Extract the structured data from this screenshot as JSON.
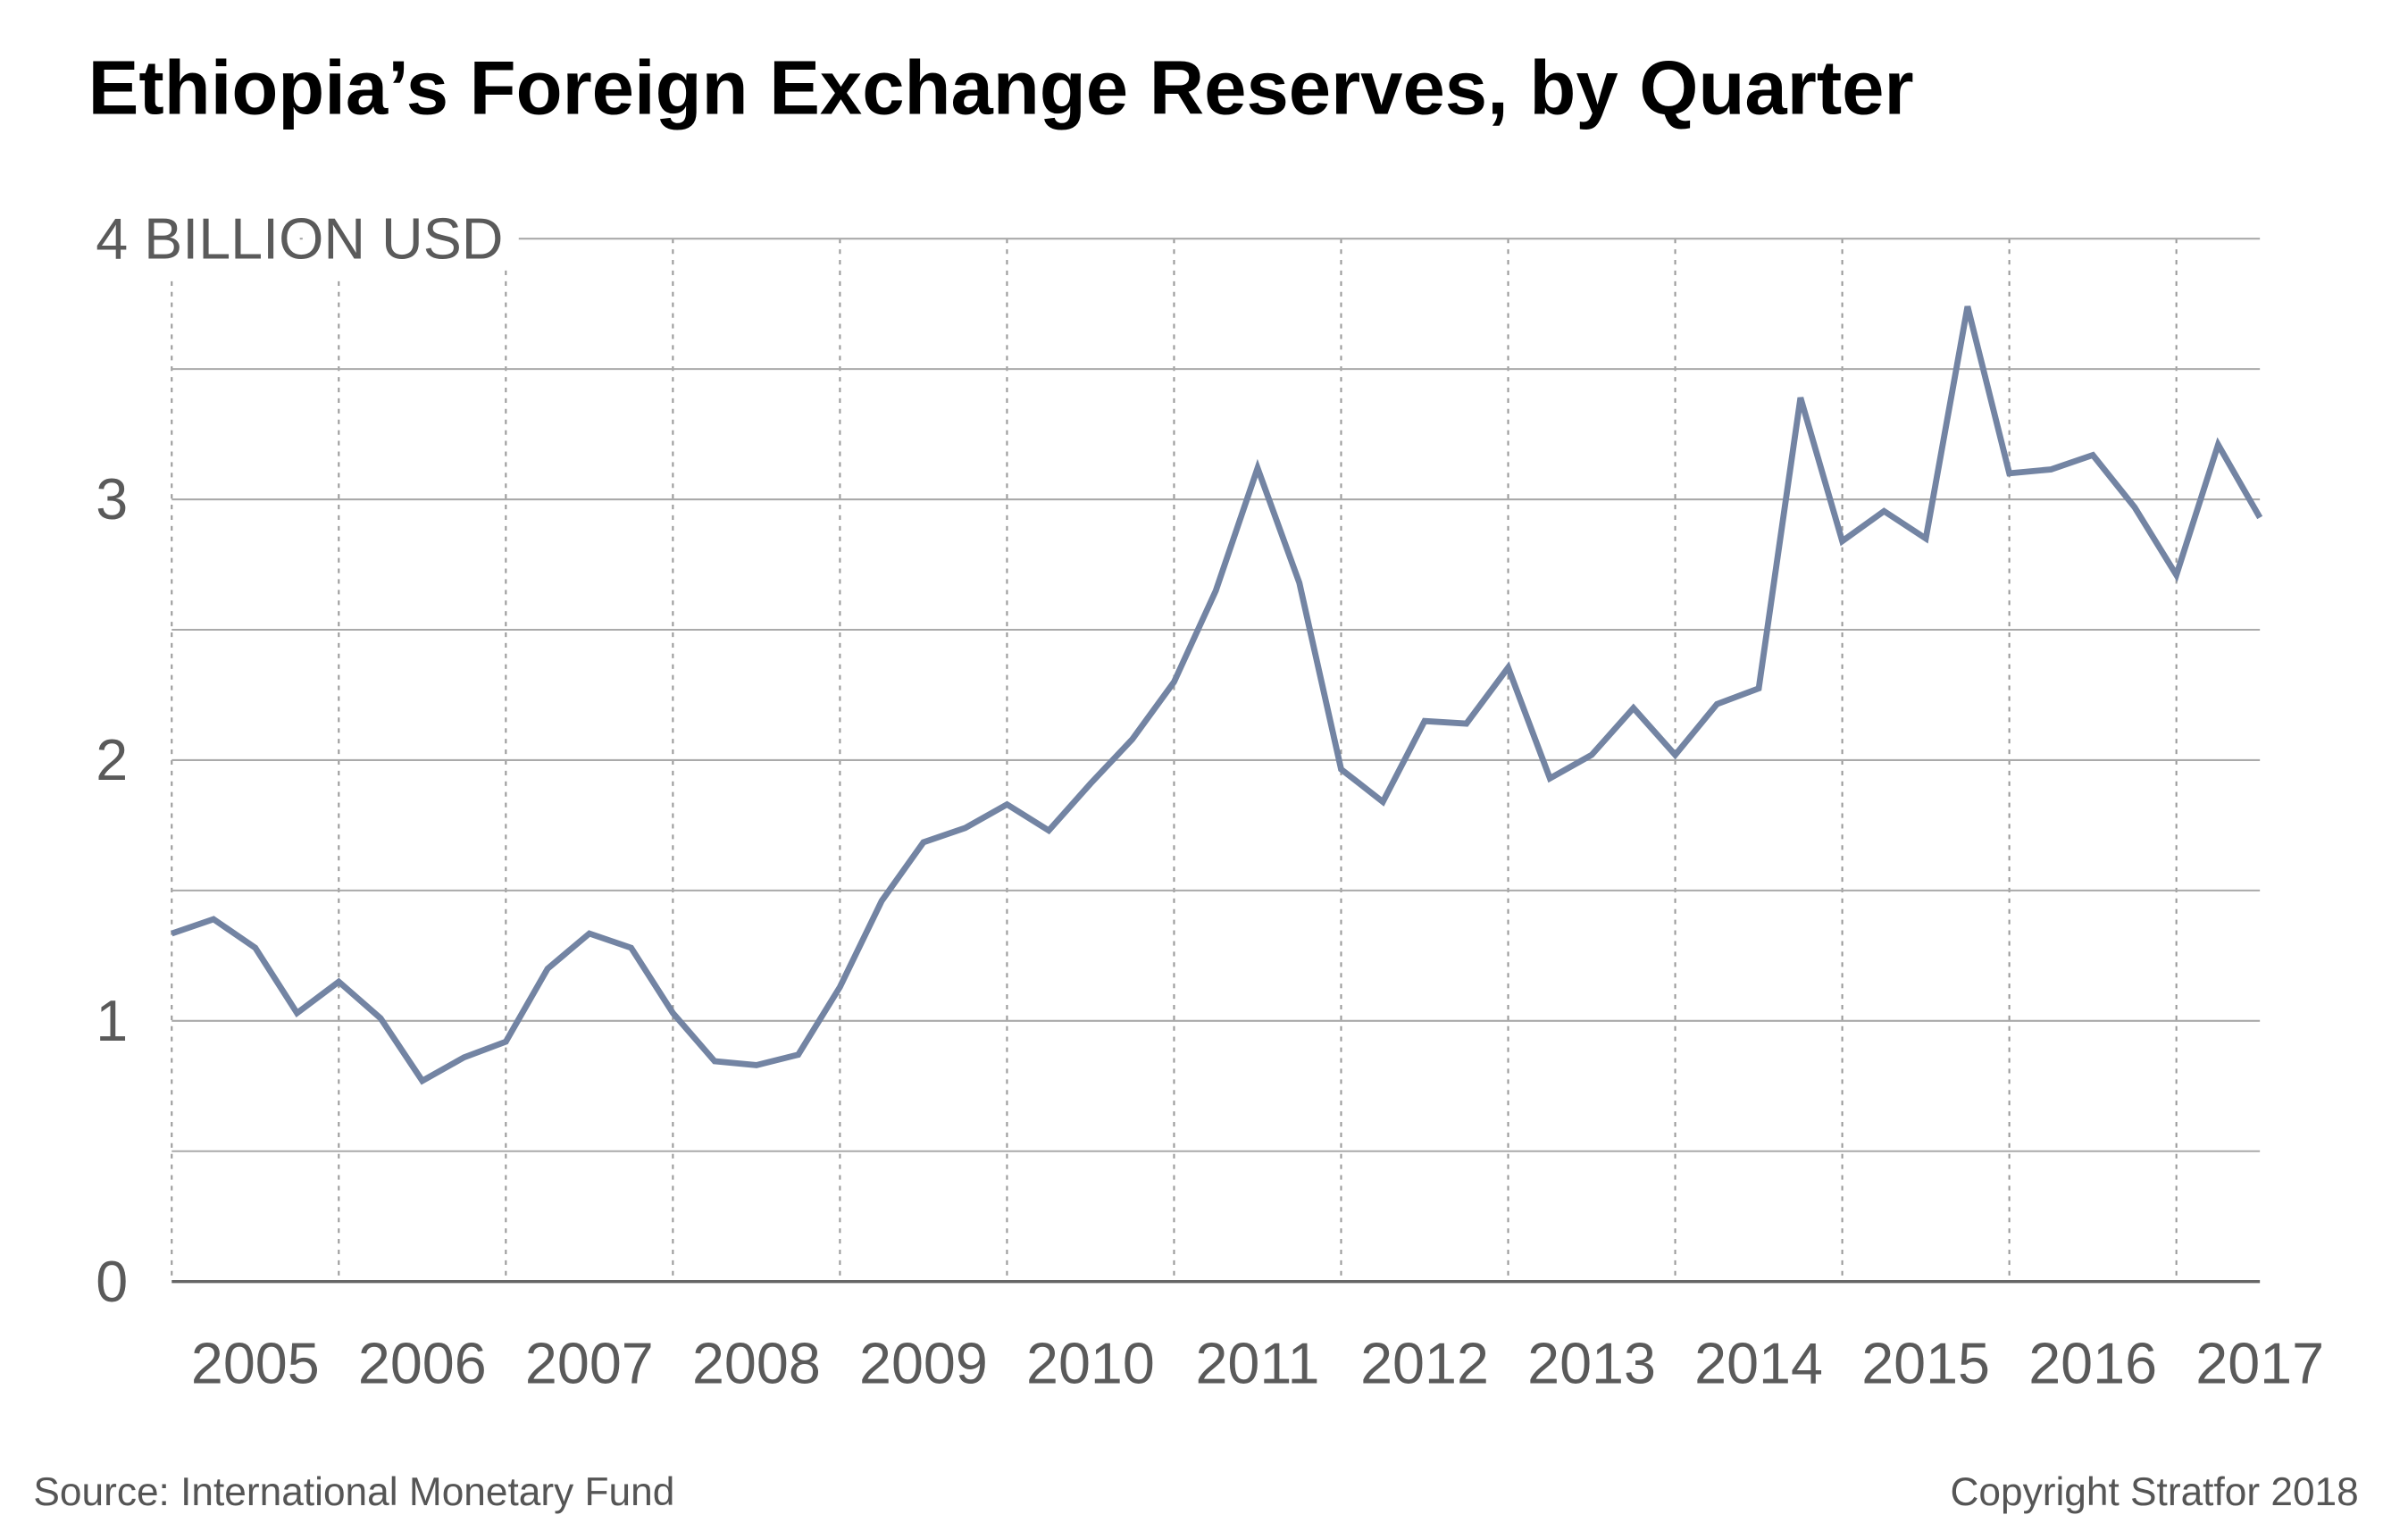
{
  "chart_data": {
    "type": "line",
    "title": "Ethiopia’s Foreign Exchange Reserves, by Quarter",
    "source": "Source: International Monetary Fund",
    "copyright": "Copyright Stratfor 2018",
    "x": [
      2005,
      2005.25,
      2005.5,
      2005.75,
      2006,
      2006.25,
      2006.5,
      2006.75,
      2007,
      2007.25,
      2007.5,
      2007.75,
      2008,
      2008.25,
      2008.5,
      2008.75,
      2009,
      2009.25,
      2009.5,
      2009.75,
      2010,
      2010.25,
      2010.5,
      2010.75,
      2011,
      2011.25,
      2011.5,
      2011.75,
      2012,
      2012.25,
      2012.5,
      2012.75,
      2013,
      2013.25,
      2013.5,
      2013.75,
      2014,
      2014.25,
      2014.5,
      2014.75,
      2015,
      2015.25,
      2015.5,
      2015.75,
      2016,
      2016.25,
      2016.5,
      2016.75,
      2017,
      2017.25,
      2017.5
    ],
    "series": [
      {
        "name": "Foreign exchange reserves",
        "color": "#7384a3",
        "values": [
          1.335,
          1.39,
          1.28,
          1.03,
          1.15,
          1.01,
          0.77,
          0.86,
          0.92,
          1.2,
          1.335,
          1.28,
          1.03,
          0.845,
          0.83,
          0.87,
          1.13,
          1.46,
          1.685,
          1.74,
          1.83,
          1.73,
          1.91,
          2.08,
          2.3,
          2.65,
          3.12,
          2.68,
          1.965,
          1.84,
          2.15,
          2.14,
          2.355,
          1.93,
          2.02,
          2.2,
          2.02,
          2.215,
          2.275,
          3.39,
          2.84,
          2.955,
          2.85,
          3.74,
          3.1,
          3.115,
          3.17,
          2.97,
          2.71,
          3.21,
          2.93
        ]
      }
    ],
    "xlim": [
      2005,
      2017.5
    ],
    "xticks": [
      {
        "value": 2005.5,
        "label": "2005"
      },
      {
        "value": 2006.5,
        "label": "2006"
      },
      {
        "value": 2007.5,
        "label": "2007"
      },
      {
        "value": 2008.5,
        "label": "2008"
      },
      {
        "value": 2009.5,
        "label": "2009"
      },
      {
        "value": 2010.5,
        "label": "2010"
      },
      {
        "value": 2011.5,
        "label": "2011"
      },
      {
        "value": 2012.5,
        "label": "2012"
      },
      {
        "value": 2013.5,
        "label": "2013"
      },
      {
        "value": 2014.5,
        "label": "2014"
      },
      {
        "value": 2015.5,
        "label": "2015"
      },
      {
        "value": 2016.5,
        "label": "2016"
      },
      {
        "value": 2017.5,
        "label": "2017"
      }
    ],
    "xgrid": [
      2005,
      2006,
      2007,
      2008,
      2009,
      2010,
      2011,
      2012,
      2013,
      2014,
      2015,
      2016,
      2017
    ],
    "ylim": [
      0,
      4
    ],
    "yticks": [
      0,
      1,
      2,
      3,
      {
        "value": 4,
        "label": "4 BILLION USD"
      }
    ],
    "yminor": [
      0.5,
      1.5,
      2.5,
      3.5
    ],
    "grid": true
  }
}
